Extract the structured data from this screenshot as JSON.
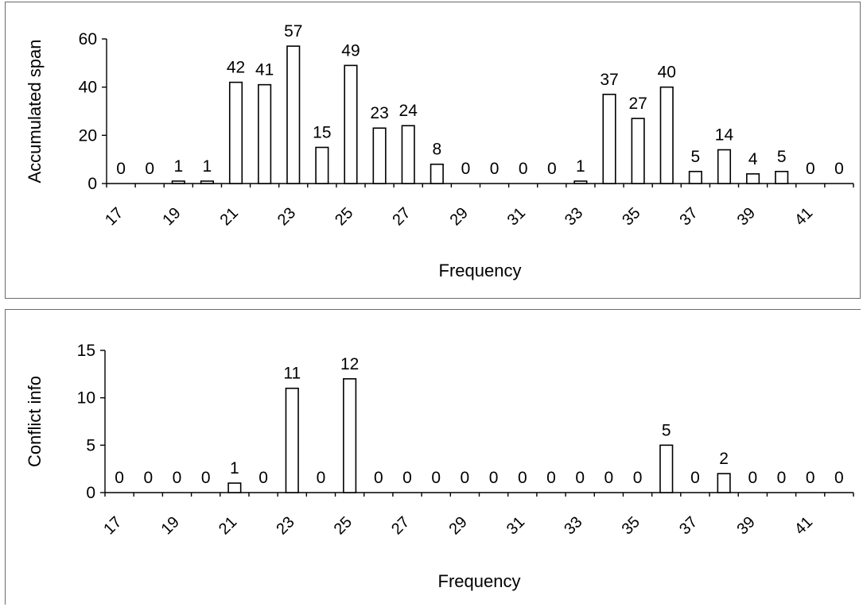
{
  "chart_data": [
    {
      "type": "bar",
      "title": "",
      "xlabel": "Frequency",
      "ylabel": "Accumulated span",
      "ylim": [
        0,
        60
      ],
      "yticks": [
        0,
        20,
        40,
        60
      ],
      "x": [
        17,
        18,
        19,
        20,
        21,
        22,
        23,
        24,
        25,
        26,
        27,
        28,
        29,
        30,
        31,
        32,
        33,
        34,
        35,
        36,
        37,
        38,
        39,
        40,
        41,
        42
      ],
      "x_tick_labels": [
        "17",
        "19",
        "21",
        "23",
        "25",
        "27",
        "29",
        "31",
        "33",
        "35",
        "37",
        "39",
        "41"
      ],
      "values": [
        0,
        0,
        1,
        1,
        42,
        41,
        57,
        15,
        49,
        23,
        24,
        8,
        0,
        0,
        0,
        0,
        1,
        37,
        27,
        40,
        5,
        14,
        4,
        5,
        0,
        0
      ],
      "data_labels": [
        "0",
        "0",
        "1",
        "1",
        "42",
        "41",
        "57",
        "15",
        "49",
        "23",
        "24",
        "8",
        "0",
        "0",
        "0",
        "0",
        "1",
        "37",
        "27",
        "40",
        "5",
        "14",
        "4",
        "5",
        "0",
        "0"
      ],
      "grid": false,
      "legend": "none"
    },
    {
      "type": "bar",
      "title": "",
      "xlabel": "Frequency",
      "ylabel": "Conflict info",
      "ylim": [
        0,
        15
      ],
      "yticks": [
        0,
        5,
        10,
        15
      ],
      "x": [
        17,
        18,
        19,
        20,
        21,
        22,
        23,
        24,
        25,
        26,
        27,
        28,
        29,
        30,
        31,
        32,
        33,
        34,
        35,
        36,
        37,
        38,
        39,
        40,
        41,
        42
      ],
      "x_tick_labels": [
        "17",
        "19",
        "21",
        "23",
        "25",
        "27",
        "29",
        "31",
        "33",
        "35",
        "37",
        "39",
        "41"
      ],
      "values": [
        0,
        0,
        0,
        0,
        1,
        0,
        11,
        0,
        12,
        0,
        0,
        0,
        0,
        0,
        0,
        0,
        0,
        0,
        0,
        5,
        0,
        2,
        0,
        0,
        0,
        0
      ],
      "data_labels": [
        "0",
        "0",
        "0",
        "0",
        "1",
        "0",
        "11",
        "0",
        "12",
        "0",
        "0",
        "0",
        "0",
        "0",
        "0",
        "0",
        "0",
        "0",
        "0",
        "5",
        "0",
        "2",
        "0",
        "0",
        "0",
        "0"
      ],
      "grid": false,
      "legend": "none"
    }
  ]
}
